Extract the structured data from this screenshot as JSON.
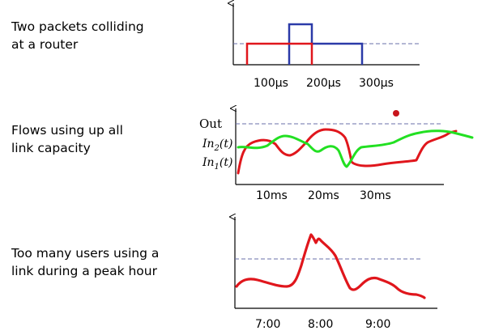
{
  "panels": [
    {
      "caption_lines": [
        "Two packets colliding",
        "at a router"
      ],
      "ticks": [
        "100μs",
        "200μs",
        "300μs"
      ],
      "colors": {
        "red": "#e0161c",
        "blue": "#2b3aa8",
        "threshold": "#6a6fa8"
      }
    },
    {
      "caption_lines": [
        "Flows using up all",
        "link capacity"
      ],
      "ticks": [
        "10ms",
        "20ms",
        "30ms"
      ],
      "labels": {
        "out": "Out",
        "in2": "In",
        "in2_sub": "2",
        "in2_suffix": "(t)",
        "in1": "In",
        "in1_sub": "1",
        "in1_suffix": "(t)"
      },
      "colors": {
        "red": "#e0161c",
        "green": "#22e022",
        "dot": "#c8141c"
      }
    },
    {
      "caption_lines": [
        "Too many users using a",
        "link during a peak hour"
      ],
      "ticks": [
        "7:00",
        "8:00",
        "9:00"
      ],
      "colors": {
        "red": "#e0161c"
      }
    }
  ]
}
